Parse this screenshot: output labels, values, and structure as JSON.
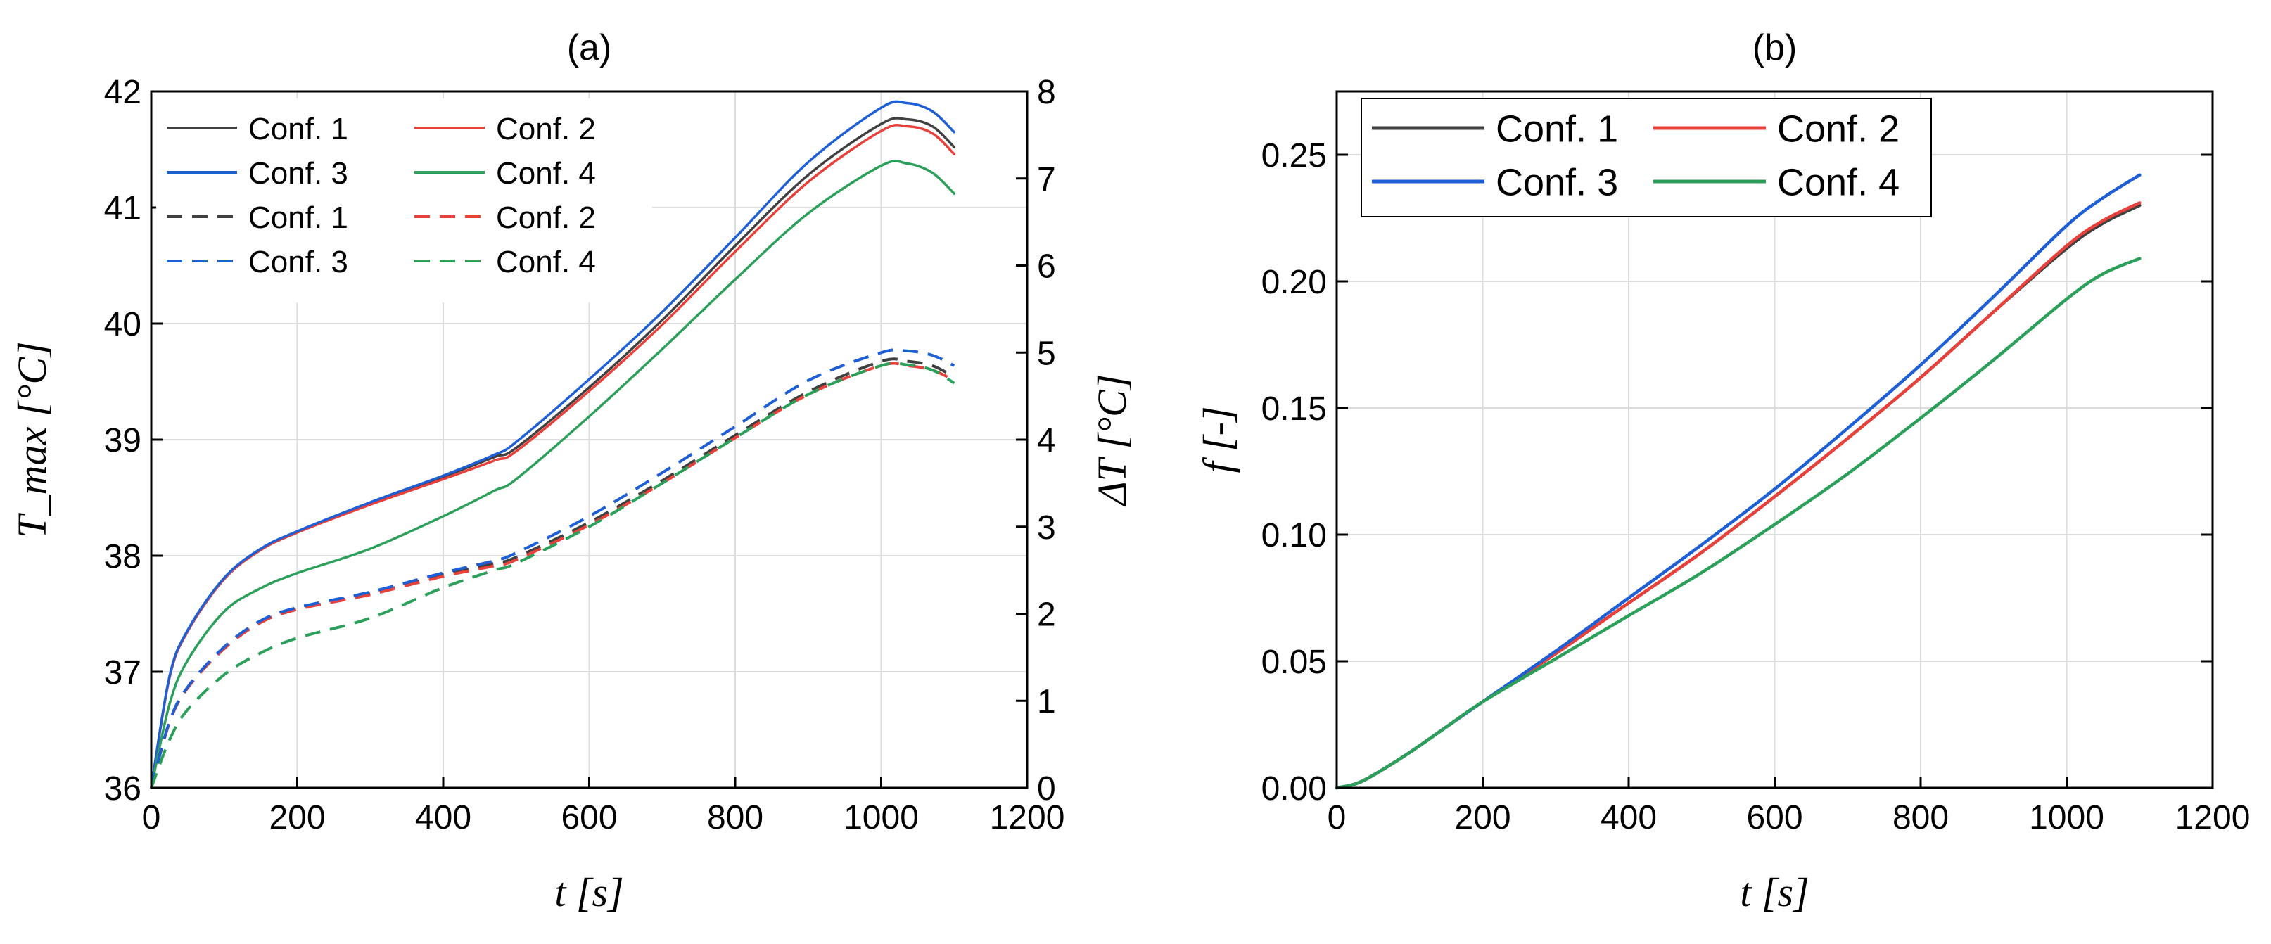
{
  "chart_data": [
    {
      "id": "a",
      "type": "line",
      "title": "(a)",
      "xlabel": "t [s]",
      "ylabel": "T_max [°C]",
      "y2label": "ΔT [°C]",
      "xlim": [
        0,
        1200
      ],
      "ylim": [
        36,
        42
      ],
      "y2lim": [
        0,
        8
      ],
      "xticks": [
        "0",
        "200",
        "400",
        "600",
        "800",
        "1000",
        "1200"
      ],
      "yticks": [
        "36",
        "37",
        "38",
        "39",
        "40",
        "41",
        "42"
      ],
      "y2ticks": [
        "0",
        "1",
        "2",
        "3",
        "4",
        "5",
        "6",
        "7",
        "8"
      ],
      "grid": true,
      "legend_position": "top-left",
      "x": [
        0,
        25,
        50,
        100,
        150,
        200,
        300,
        400,
        470,
        500,
        600,
        700,
        800,
        900,
        1000,
        1035,
        1070,
        1100
      ],
      "series": [
        {
          "name": "Conf. 1",
          "axis": "left",
          "style": "solid",
          "color": "#404040",
          "values": [
            36.0,
            36.95,
            37.35,
            37.8,
            38.05,
            38.2,
            38.45,
            38.68,
            38.85,
            38.93,
            39.45,
            40.03,
            40.67,
            41.28,
            41.72,
            41.76,
            41.7,
            41.52
          ]
        },
        {
          "name": "Conf. 2",
          "axis": "left",
          "style": "solid",
          "color": "#e8403a",
          "values": [
            36.0,
            36.95,
            37.35,
            37.8,
            38.05,
            38.2,
            38.44,
            38.66,
            38.82,
            38.9,
            39.42,
            39.99,
            40.62,
            41.22,
            41.66,
            41.7,
            41.64,
            41.46
          ]
        },
        {
          "name": "Conf. 3",
          "axis": "left",
          "style": "solid",
          "color": "#1f5fd6",
          "values": [
            36.0,
            36.96,
            37.36,
            37.81,
            38.06,
            38.21,
            38.46,
            38.69,
            38.87,
            38.98,
            39.52,
            40.1,
            40.74,
            41.39,
            41.86,
            41.9,
            41.83,
            41.65
          ]
        },
        {
          "name": "Conf. 4",
          "axis": "left",
          "style": "solid",
          "color": "#2ca05a",
          "values": [
            36.0,
            36.72,
            37.1,
            37.52,
            37.72,
            37.85,
            38.06,
            38.34,
            38.56,
            38.66,
            39.2,
            39.78,
            40.38,
            40.95,
            41.36,
            41.38,
            41.3,
            41.12
          ]
        },
        {
          "name": "Conf. 1",
          "axis": "right",
          "style": "dashed",
          "color": "#404040",
          "values": [
            0.0,
            0.75,
            1.15,
            1.6,
            1.9,
            2.05,
            2.23,
            2.45,
            2.58,
            2.65,
            3.05,
            3.53,
            4.05,
            4.55,
            4.9,
            4.9,
            4.85,
            4.72
          ]
        },
        {
          "name": "Conf. 2",
          "axis": "right",
          "style": "dashed",
          "color": "#e8403a",
          "values": [
            0.0,
            0.75,
            1.15,
            1.6,
            1.9,
            2.05,
            2.22,
            2.43,
            2.55,
            2.62,
            3.02,
            3.5,
            4.02,
            4.52,
            4.85,
            4.85,
            4.8,
            4.68
          ]
        },
        {
          "name": "Conf. 3",
          "axis": "right",
          "style": "dashed",
          "color": "#1f5fd6",
          "values": [
            0.0,
            0.76,
            1.16,
            1.62,
            1.92,
            2.07,
            2.25,
            2.47,
            2.61,
            2.7,
            3.12,
            3.62,
            4.15,
            4.68,
            5.0,
            5.02,
            4.97,
            4.85
          ]
        },
        {
          "name": "Conf. 4",
          "axis": "right",
          "style": "dashed",
          "color": "#2ca05a",
          "values": [
            0.0,
            0.55,
            0.9,
            1.3,
            1.55,
            1.72,
            1.95,
            2.3,
            2.5,
            2.58,
            3.0,
            3.5,
            4.02,
            4.52,
            4.85,
            4.86,
            4.8,
            4.65
          ]
        }
      ]
    },
    {
      "id": "b",
      "type": "line",
      "title": "(b)",
      "xlabel": "t [s]",
      "ylabel": "f [-]",
      "xlim": [
        0,
        1200
      ],
      "ylim": [
        0,
        0.275
      ],
      "xticks": [
        "0",
        "200",
        "400",
        "600",
        "800",
        "1000",
        "1200"
      ],
      "yticks": [
        "0.00",
        "0.05",
        "0.10",
        "0.15",
        "0.20",
        "0.25"
      ],
      "grid": true,
      "legend_position": "top-left",
      "x": [
        0,
        25,
        50,
        100,
        150,
        200,
        300,
        400,
        500,
        600,
        700,
        800,
        900,
        1000,
        1050,
        1100
      ],
      "series": [
        {
          "name": "Conf. 1",
          "style": "solid",
          "color": "#404040",
          "values": [
            0.0,
            0.0015,
            0.005,
            0.014,
            0.024,
            0.034,
            0.053,
            0.073,
            0.093,
            0.115,
            0.138,
            0.162,
            0.188,
            0.213,
            0.223,
            0.23
          ]
        },
        {
          "name": "Conf. 2",
          "style": "solid",
          "color": "#e8403a",
          "values": [
            0.0,
            0.0015,
            0.005,
            0.014,
            0.024,
            0.034,
            0.053,
            0.073,
            0.093,
            0.115,
            0.138,
            0.162,
            0.188,
            0.214,
            0.224,
            0.231
          ]
        },
        {
          "name": "Conf. 3",
          "style": "solid",
          "color": "#1f5fd6",
          "values": [
            0.0,
            0.0015,
            0.005,
            0.014,
            0.024,
            0.034,
            0.054,
            0.075,
            0.096,
            0.118,
            0.142,
            0.167,
            0.194,
            0.222,
            0.233,
            0.242
          ]
        },
        {
          "name": "Conf. 4",
          "style": "solid",
          "color": "#2ca05a",
          "values": [
            0.0,
            0.0015,
            0.005,
            0.014,
            0.024,
            0.034,
            0.051,
            0.068,
            0.085,
            0.104,
            0.124,
            0.146,
            0.169,
            0.193,
            0.203,
            0.209
          ]
        }
      ]
    }
  ]
}
